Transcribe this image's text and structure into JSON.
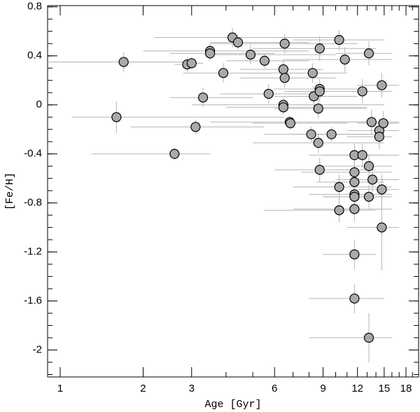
{
  "chart_data": {
    "type": "scatter",
    "x_label": "Age [Gyr]",
    "y_label": "[Fe/H]",
    "xscale": "log",
    "xlim": [
      0.9,
      20
    ],
    "ylim": [
      -2.22,
      0.81
    ],
    "xticks": [
      1,
      2,
      3,
      6,
      9,
      12,
      15,
      18
    ],
    "yticks": [
      -2,
      -1.6,
      -1.2,
      -0.8,
      -0.4,
      0,
      0.4,
      0.8
    ],
    "series": [
      {
        "color": "#aaaaaa",
        "errorbar_color": "#b4b4b4",
        "x": [
          1.7,
          1.6,
          2.6,
          2.89,
          3.0,
          3.1,
          3.3,
          3.5,
          3.5,
          3.91,
          4.22,
          4.42,
          4.91,
          5.52,
          5.71,
          6.46,
          6.53,
          6.53,
          6.46,
          6.46,
          6.81,
          6.85,
          8.25,
          8.33,
          8.15,
          8.75,
          8.75,
          8.75,
          8.65,
          8.65,
          8.75,
          9.66,
          10.3,
          10.8,
          10.3,
          10.3,
          11.7,
          11.7,
          11.7,
          11.7,
          11.7,
          11.7,
          11.7,
          11.7,
          12.5,
          12.5,
          13.2,
          13.2,
          13.5,
          13.6,
          13.2,
          13.2,
          14.4,
          14.4,
          14.7,
          14.9,
          14.7,
          14.7
        ],
        "values": [
          0.35,
          -0.1,
          -0.4,
          0.33,
          0.34,
          -0.18,
          0.06,
          0.44,
          0.42,
          0.26,
          0.55,
          0.51,
          0.41,
          0.36,
          0.09,
          0.29,
          0.5,
          0.22,
          0.0,
          -0.02,
          -0.14,
          -0.15,
          0.26,
          0.07,
          -0.24,
          0.13,
          0.11,
          0.46,
          -0.03,
          -0.31,
          -0.53,
          -0.24,
          0.53,
          0.37,
          -0.67,
          -0.86,
          -0.41,
          -0.55,
          -0.63,
          -0.73,
          -0.75,
          -0.85,
          -1.22,
          -1.58,
          0.11,
          -0.41,
          0.42,
          -0.5,
          -0.14,
          -0.61,
          -0.75,
          -1.9,
          -0.21,
          -0.26,
          0.16,
          -0.15,
          -0.69,
          -1.0
        ],
        "x_lo": [
          0.9,
          1.1,
          1.3,
          2.6,
          2.8,
          1.8,
          2.5,
          2.0,
          2.5,
          2.8,
          2.2,
          3.5,
          3.5,
          4.0,
          3.8,
          4.5,
          3.5,
          4.5,
          3.0,
          4.0,
          3.5,
          5.0,
          6.0,
          6.0,
          5.5,
          6.0,
          6.5,
          5.0,
          6.0,
          5.0,
          6.0,
          7.0,
          7.0,
          6.5,
          7.0,
          5.5,
          8.0,
          7.5,
          8.5,
          8.0,
          9.0,
          7.0,
          9.0,
          8.0,
          9.0,
          9.0,
          10.0,
          9.0,
          9.0,
          10.0,
          9.0,
          8.0,
          11.0,
          11.0,
          12.0,
          12.0,
          12.0,
          11.0
        ],
        "x_hi": [
          3.0,
          6.5,
          3.5,
          3.1,
          3.3,
          5.5,
          5.0,
          8.0,
          6.0,
          6.0,
          10.0,
          8.0,
          10.0,
          8.0,
          9.0,
          9.0,
          12.0,
          10.0,
          15.0,
          13.0,
          13.0,
          11.0,
          11.0,
          12.0,
          13.0,
          13.0,
          12.0,
          14.0,
          13.0,
          15.0,
          14.0,
          14.0,
          15.0,
          16.0,
          16.0,
          14.0,
          15.0,
          16.0,
          15.0,
          16.0,
          15.0,
          16.0,
          14.0,
          15.0,
          16.0,
          17.0,
          16.0,
          16.0,
          17.0,
          17.0,
          16.0,
          16.0,
          17.0,
          16.0,
          17.0,
          17.0,
          17.0,
          17.0
        ],
        "yerr": [
          0.08,
          0.13,
          0.05,
          0.06,
          0.05,
          0.06,
          0.08,
          0.06,
          0.06,
          0.08,
          0.08,
          0.06,
          0.08,
          0.06,
          0.08,
          0.08,
          0.08,
          0.08,
          0.06,
          0.06,
          0.05,
          0.05,
          0.08,
          0.08,
          0.06,
          0.08,
          0.08,
          0.1,
          0.08,
          0.08,
          0.1,
          0.06,
          0.08,
          0.1,
          0.1,
          0.1,
          0.1,
          0.1,
          0.1,
          0.08,
          0.08,
          0.1,
          0.12,
          0.12,
          0.1,
          0.1,
          0.1,
          0.1,
          0.1,
          0.1,
          0.1,
          0.2,
          0.1,
          0.1,
          0.1,
          0.1,
          0.12,
          0.35
        ]
      }
    ]
  }
}
